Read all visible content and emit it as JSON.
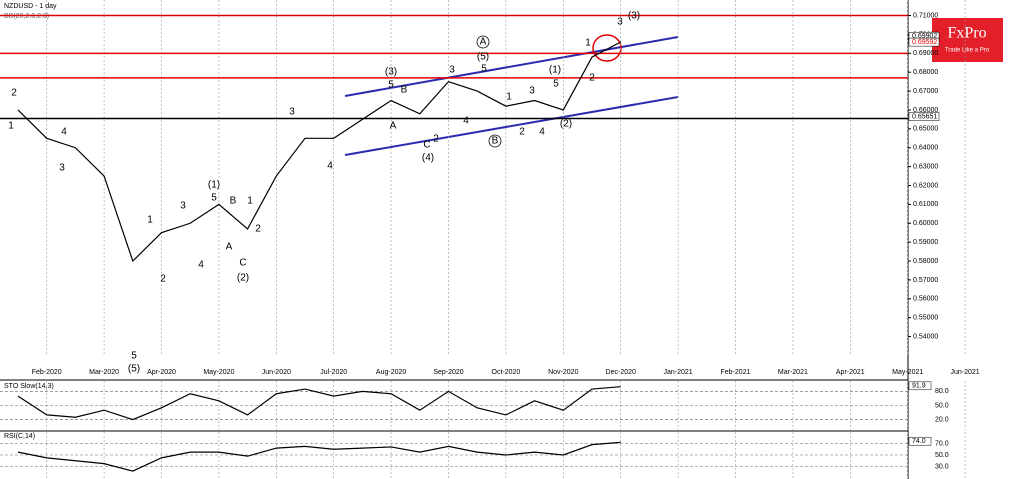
{
  "header": {
    "title": "NZDUSD - 1 day",
    "indicator": "BB(20,2.0,2.0)"
  },
  "logo": {
    "brand": "FxPro",
    "tagline": "Trade Like a Pro"
  },
  "chart_data": [
    {
      "type": "line",
      "name": "NZDUSD",
      "categories": [
        null,
        "Feb-2020",
        null,
        "Mar-2020",
        null,
        "Apr-2020",
        null,
        "May-2020",
        null,
        "Jun-2020",
        null,
        "Jul-2020",
        null,
        "Aug-2020",
        null,
        "Sep-2020",
        null,
        "Oct-2020",
        null,
        "Nov-2020",
        null,
        "Dec-2020",
        null,
        "Jan-2021",
        null,
        "Feb-2021",
        null,
        "Mar-2021",
        null,
        "Apr-2021",
        null,
        "May-2021",
        null,
        "Jun-2021"
      ],
      "values": [
        0.66,
        0.645,
        0.64,
        0.625,
        0.58,
        0.595,
        0.6,
        0.61,
        0.597,
        0.625,
        0.645,
        0.645,
        0.655,
        0.665,
        0.658,
        0.675,
        0.67,
        0.662,
        0.665,
        0.66,
        0.688,
        0.696,
        null,
        null,
        null,
        null,
        null,
        null,
        null,
        null,
        null,
        null,
        null,
        null
      ],
      "color": "#000000",
      "ylim": [
        0.535,
        0.714
      ],
      "yticks": [
        {
          "value": 0.54,
          "label": "0.54000"
        },
        {
          "value": 0.55,
          "label": "0.55000"
        },
        {
          "value": 0.56,
          "label": "0.56000"
        },
        {
          "value": 0.57,
          "label": "0.57000"
        },
        {
          "value": 0.58,
          "label": "0.58000"
        },
        {
          "value": 0.59,
          "label": "0.59000"
        },
        {
          "value": 0.6,
          "label": "0.60000"
        },
        {
          "value": 0.61,
          "label": "0.61000"
        },
        {
          "value": 0.62,
          "label": "0.62000"
        },
        {
          "value": 0.63,
          "label": "0.63000"
        },
        {
          "value": 0.64,
          "label": "0.64000"
        },
        {
          "value": 0.65,
          "label": "0.65000"
        },
        {
          "value": 0.66,
          "label": "0.66000"
        },
        {
          "value": 0.67,
          "label": "0.67000"
        },
        {
          "value": 0.68,
          "label": "0.68000"
        },
        {
          "value": 0.69,
          "label": "0.69000"
        },
        {
          "value": 0.7,
          "label": "0.70000"
        },
        {
          "value": 0.71,
          "label": "0.71000"
        }
      ],
      "hlines": [
        0.71,
        0.69,
        0.677,
        0.6555
      ],
      "hline_colors": [
        "#e00000",
        "#e00000",
        "#e00000",
        "#000000"
      ],
      "price_labels": [
        0.69902,
        0.69592,
        0.65651
      ],
      "annotations": [
        "2",
        "1",
        "4",
        "3",
        "5",
        "(5)",
        "1",
        "2",
        "3",
        "4",
        "(1)",
        "5",
        "A",
        "B",
        "1",
        "2",
        "C",
        "(2)",
        "3",
        "4",
        "(3)",
        "5",
        "B",
        "A",
        "C",
        "2",
        "(4)",
        "3",
        "4",
        "A",
        "(5)",
        "5",
        "B",
        "1",
        "2",
        "3",
        "4",
        "(1)",
        "5",
        "1",
        "2",
        "(2)",
        "3",
        "(3)"
      ],
      "grid": true
    },
    {
      "type": "line",
      "title": "STO Slow(14,3)",
      "values": [
        70,
        30,
        25,
        40,
        20,
        45,
        75,
        60,
        30,
        75,
        85,
        70,
        80,
        75,
        40,
        80,
        45,
        30,
        60,
        40,
        85,
        90,
        null,
        null,
        null,
        null,
        null,
        null,
        null,
        null,
        null,
        null,
        null,
        null
      ],
      "color": "#000000",
      "ylim": [
        0,
        100
      ],
      "yticks": [
        {
          "value": 20,
          "label": "20.0"
        },
        {
          "value": 50,
          "label": "50.0"
        },
        {
          "value": 80,
          "label": "80.0"
        }
      ],
      "last_value": 91.9
    },
    {
      "type": "line",
      "title": "RSI(C,14)",
      "values": [
        55,
        45,
        40,
        35,
        22,
        45,
        55,
        55,
        48,
        62,
        65,
        60,
        62,
        64,
        55,
        65,
        55,
        50,
        55,
        50,
        68,
        72,
        null,
        null,
        null,
        null,
        null,
        null,
        null,
        null,
        null,
        null,
        null,
        null
      ],
      "color": "#000000",
      "ylim": [
        10,
        90
      ],
      "yticks": [
        {
          "value": 30,
          "label": "30.0"
        },
        {
          "value": 50,
          "label": "50.0"
        },
        {
          "value": 70,
          "label": "70.0"
        }
      ],
      "last_value": {
        "value": 74.0,
        "label": "74.0"
      }
    }
  ]
}
